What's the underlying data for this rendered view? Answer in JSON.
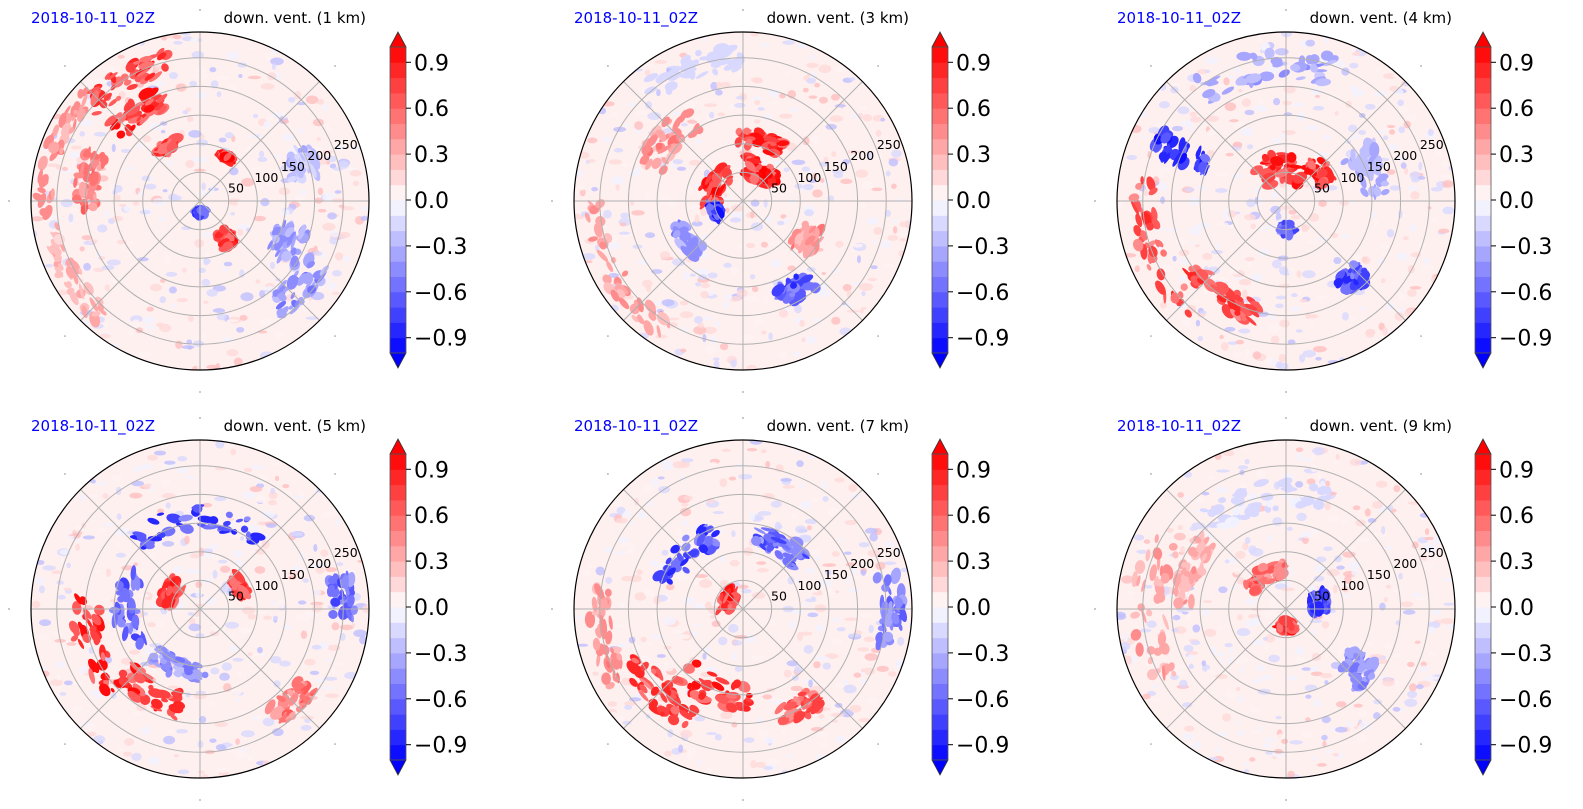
{
  "figure": {
    "title_left_color": "#0000ff",
    "title_right_color": "#000000"
  },
  "colormap": {
    "name": "bwr",
    "levels": [
      -1.0,
      -0.9,
      -0.8,
      -0.7,
      -0.6,
      -0.5,
      -0.4,
      -0.3,
      -0.2,
      -0.1,
      0.0,
      0.1,
      0.2,
      0.3,
      0.4,
      0.5,
      0.6,
      0.7,
      0.8,
      0.9,
      1.0
    ],
    "extend": "both",
    "low_color": "#0000ff",
    "mid_color": "#ffffff",
    "high_color": "#ff0000"
  },
  "chart_data": [
    {
      "type": "heatmap",
      "projection": "polar",
      "title_left": "2018-10-11_02Z",
      "title_right": "down. vent. (1 km)",
      "r_ticks": [
        50,
        100,
        150,
        200,
        250
      ],
      "r_tick_labels": [
        "50",
        "100",
        "150",
        "200",
        "250"
      ],
      "r_max": 295,
      "theta_gridlines_deg": [
        0,
        45,
        90,
        135,
        180,
        225,
        270,
        315
      ],
      "colorbar_ticks": [
        0.9,
        0.6,
        0.3,
        0.0,
        -0.3,
        -0.6,
        -0.9
      ],
      "colorbar_tick_labels": [
        "0.9",
        "0.6",
        "0.3",
        "0.0",
        "−0.3",
        "−0.6",
        "−0.9"
      ],
      "vmin": -1.0,
      "vmax": 1.0,
      "features": [
        {
          "r": 250,
          "theta": 120,
          "dr": 45,
          "dtheta": 40,
          "value": 0.9
        },
        {
          "r": 190,
          "theta": 125,
          "dr": 40,
          "dtheta": 30,
          "value": 0.95
        },
        {
          "r": 270,
          "theta": 160,
          "dr": 30,
          "dtheta": 50,
          "value": 0.5
        },
        {
          "r": 200,
          "theta": 170,
          "dr": 40,
          "dtheta": 30,
          "value": 0.6
        },
        {
          "r": 110,
          "theta": 120,
          "dr": 20,
          "dtheta": 20,
          "value": 0.9
        },
        {
          "r": 90,
          "theta": 60,
          "dr": 10,
          "dtheta": 10,
          "value": 1.0
        },
        {
          "r": 80,
          "theta": 305,
          "dr": 30,
          "dtheta": 15,
          "value": 0.95
        },
        {
          "r": 230,
          "theta": 320,
          "dr": 50,
          "dtheta": 30,
          "value": -0.5
        },
        {
          "r": 170,
          "theta": 335,
          "dr": 60,
          "dtheta": 20,
          "value": -0.45
        },
        {
          "r": 190,
          "theta": 20,
          "dr": 50,
          "dtheta": 15,
          "value": -0.3
        },
        {
          "r": 20,
          "theta": 270,
          "dr": 10,
          "dtheta": 40,
          "value": -0.9
        },
        {
          "r": 260,
          "theta": 210,
          "dr": 40,
          "dtheta": 40,
          "value": 0.35
        }
      ]
    },
    {
      "type": "heatmap",
      "projection": "polar",
      "title_left": "2018-10-11_02Z",
      "title_right": "down. vent. (3 km)",
      "r_ticks": [
        50,
        100,
        150,
        200,
        250
      ],
      "r_tick_labels": [
        "50",
        "100",
        "150",
        "200",
        "250"
      ],
      "r_max": 295,
      "theta_gridlines_deg": [
        0,
        45,
        90,
        135,
        180,
        225,
        270,
        315
      ],
      "colorbar_ticks": [
        0.9,
        0.6,
        0.3,
        0.0,
        -0.3,
        -0.6,
        -0.9
      ],
      "colorbar_tick_labels": [
        "0.9",
        "0.6",
        "0.3",
        "0.0",
        "−0.3",
        "−0.6",
        "−0.9"
      ],
      "vmin": -1.0,
      "vmax": 1.0,
      "features": [
        {
          "r": 60,
          "theta": 150,
          "dr": 40,
          "dtheta": 70,
          "value": 1.0
        },
        {
          "r": 60,
          "theta": 60,
          "dr": 40,
          "dtheta": 50,
          "value": 1.0
        },
        {
          "r": 110,
          "theta": 75,
          "dr": 30,
          "dtheta": 40,
          "value": 0.95
        },
        {
          "r": 50,
          "theta": 200,
          "dr": 20,
          "dtheta": 25,
          "value": -0.95
        },
        {
          "r": 170,
          "theta": 140,
          "dr": 50,
          "dtheta": 40,
          "value": 0.5
        },
        {
          "r": 260,
          "theta": 210,
          "dr": 40,
          "dtheta": 60,
          "value": 0.45
        },
        {
          "r": 180,
          "theta": 300,
          "dr": 40,
          "dtheta": 20,
          "value": -0.8
        },
        {
          "r": 130,
          "theta": 330,
          "dr": 40,
          "dtheta": 20,
          "value": 0.5
        },
        {
          "r": 250,
          "theta": 110,
          "dr": 40,
          "dtheta": 40,
          "value": -0.2
        },
        {
          "r": 120,
          "theta": 215,
          "dr": 30,
          "dtheta": 30,
          "value": -0.5
        }
      ]
    },
    {
      "type": "heatmap",
      "projection": "polar",
      "title_left": "2018-10-11_02Z",
      "title_right": "down. vent. (4 km)",
      "r_ticks": [
        50,
        100,
        150,
        200,
        250
      ],
      "r_tick_labels": [
        "50",
        "100",
        "150",
        "200",
        "250"
      ],
      "r_max": 295,
      "theta_gridlines_deg": [
        0,
        45,
        90,
        135,
        180,
        225,
        270,
        315
      ],
      "colorbar_ticks": [
        0.9,
        0.6,
        0.3,
        0.0,
        -0.3,
        -0.6,
        -0.9
      ],
      "colorbar_tick_labels": [
        "0.9",
        "0.6",
        "0.3",
        "0.0",
        "−0.3",
        "−0.6",
        "−0.9"
      ],
      "vmin": -1.0,
      "vmax": 1.0,
      "features": [
        {
          "r": 60,
          "theta": 100,
          "dr": 50,
          "dtheta": 90,
          "value": 1.0
        },
        {
          "r": 80,
          "theta": 40,
          "dr": 30,
          "dtheta": 30,
          "value": 0.95
        },
        {
          "r": 200,
          "theta": 155,
          "dr": 100,
          "dtheta": 10,
          "value": -0.9
        },
        {
          "r": 250,
          "theta": 200,
          "dr": 40,
          "dtheta": 60,
          "value": 0.8
        },
        {
          "r": 200,
          "theta": 235,
          "dr": 40,
          "dtheta": 40,
          "value": 0.85
        },
        {
          "r": 180,
          "theta": 310,
          "dr": 40,
          "dtheta": 15,
          "value": -0.85
        },
        {
          "r": 240,
          "theta": 100,
          "dr": 50,
          "dtheta": 60,
          "value": -0.4
        },
        {
          "r": 50,
          "theta": 270,
          "dr": 20,
          "dtheta": 20,
          "value": -0.7
        },
        {
          "r": 150,
          "theta": 20,
          "dr": 60,
          "dtheta": 30,
          "value": -0.35
        }
      ]
    },
    {
      "type": "heatmap",
      "projection": "polar",
      "title_left": "2018-10-11_02Z",
      "title_right": "down. vent. (5 km)",
      "r_ticks": [
        50,
        100,
        150,
        200,
        250
      ],
      "r_tick_labels": [
        "50",
        "100",
        "150",
        "200",
        "250"
      ],
      "r_max": 295,
      "theta_gridlines_deg": [
        0,
        45,
        90,
        135,
        180,
        225,
        270,
        315
      ],
      "colorbar_ticks": [
        0.9,
        0.6,
        0.3,
        0.0,
        -0.3,
        -0.6,
        -0.9
      ],
      "colorbar_tick_labels": [
        "0.9",
        "0.6",
        "0.3",
        "0.0",
        "−0.3",
        "−0.6",
        "−0.9"
      ],
      "vmin": -1.0,
      "vmax": 1.0,
      "features": [
        {
          "r": 160,
          "theta": 90,
          "dr": 40,
          "dtheta": 90,
          "value": -0.85
        },
        {
          "r": 130,
          "theta": 180,
          "dr": 40,
          "dtheta": 60,
          "value": -0.7
        },
        {
          "r": 200,
          "theta": 200,
          "dr": 50,
          "dtheta": 50,
          "value": 0.95
        },
        {
          "r": 170,
          "theta": 240,
          "dr": 50,
          "dtheta": 40,
          "value": 0.9
        },
        {
          "r": 60,
          "theta": 150,
          "dr": 30,
          "dtheta": 40,
          "value": 0.9
        },
        {
          "r": 80,
          "theta": 30,
          "dr": 20,
          "dtheta": 25,
          "value": 0.85
        },
        {
          "r": 250,
          "theta": 5,
          "dr": 40,
          "dtheta": 15,
          "value": -0.7
        },
        {
          "r": 230,
          "theta": 315,
          "dr": 40,
          "dtheta": 20,
          "value": 0.6
        },
        {
          "r": 110,
          "theta": 250,
          "dr": 30,
          "dtheta": 50,
          "value": -0.5
        }
      ]
    },
    {
      "type": "heatmap",
      "projection": "polar",
      "title_left": "2018-10-11_02Z",
      "title_right": "down. vent. (7 km)",
      "r_ticks": [
        50,
        100,
        150,
        200,
        250
      ],
      "r_tick_labels": [
        "50",
        "100",
        "150",
        "200",
        "250"
      ],
      "r_max": 295,
      "theta_gridlines_deg": [
        0,
        45,
        90,
        135,
        180,
        225,
        270,
        315
      ],
      "colorbar_ticks": [
        0.9,
        0.6,
        0.3,
        0.0,
        -0.3,
        -0.6,
        -0.9
      ],
      "colorbar_tick_labels": [
        "0.9",
        "0.6",
        "0.3",
        "0.0",
        "−0.3",
        "−0.6",
        "−0.9"
      ],
      "vmin": -1.0,
      "vmax": 1.0,
      "features": [
        {
          "r": 30,
          "theta": 150,
          "dr": 25,
          "dtheta": 60,
          "value": 1.0
        },
        {
          "r": 150,
          "theta": 250,
          "dr": 50,
          "dtheta": 50,
          "value": 0.95
        },
        {
          "r": 210,
          "theta": 225,
          "dr": 50,
          "dtheta": 40,
          "value": 0.85
        },
        {
          "r": 140,
          "theta": 135,
          "dr": 40,
          "dtheta": 50,
          "value": -0.85
        },
        {
          "r": 130,
          "theta": 60,
          "dr": 40,
          "dtheta": 40,
          "value": -0.7
        },
        {
          "r": 260,
          "theta": 0,
          "dr": 40,
          "dtheta": 30,
          "value": -0.6
        },
        {
          "r": 250,
          "theta": 190,
          "dr": 40,
          "dtheta": 40,
          "value": 0.5
        },
        {
          "r": 200,
          "theta": 300,
          "dr": 40,
          "dtheta": 20,
          "value": 0.8
        }
      ]
    },
    {
      "type": "heatmap",
      "projection": "polar",
      "title_left": "2018-10-11_02Z",
      "title_right": "down. vent. (9 km)",
      "r_ticks": [
        50,
        100,
        150,
        200,
        250
      ],
      "r_tick_labels": [
        "50",
        "100",
        "150",
        "200",
        "250"
      ],
      "r_max": 295,
      "theta_gridlines_deg": [
        0,
        45,
        90,
        135,
        180,
        225,
        270,
        315
      ],
      "colorbar_ticks": [
        0.9,
        0.6,
        0.3,
        0.0,
        -0.3,
        -0.6,
        -0.9
      ],
      "colorbar_tick_labels": [
        "0.9",
        "0.6",
        "0.3",
        "0.0",
        "−0.3",
        "−0.6",
        "−0.9"
      ],
      "vmin": -1.0,
      "vmax": 1.0,
      "features": [
        {
          "r": 240,
          "theta": 180,
          "dr": 60,
          "dtheta": 60,
          "value": 0.45
        },
        {
          "r": 180,
          "theta": 160,
          "dr": 40,
          "dtheta": 40,
          "value": 0.4
        },
        {
          "r": 70,
          "theta": 120,
          "dr": 30,
          "dtheta": 60,
          "value": 0.7
        },
        {
          "r": 30,
          "theta": 270,
          "dr": 20,
          "dtheta": 40,
          "value": 0.9
        },
        {
          "r": 60,
          "theta": 10,
          "dr": 30,
          "dtheta": 30,
          "value": -0.85
        },
        {
          "r": 160,
          "theta": 320,
          "dr": 60,
          "dtheta": 20,
          "value": -0.5
        },
        {
          "r": 200,
          "theta": 100,
          "dr": 50,
          "dtheta": 60,
          "value": -0.15
        }
      ]
    }
  ]
}
